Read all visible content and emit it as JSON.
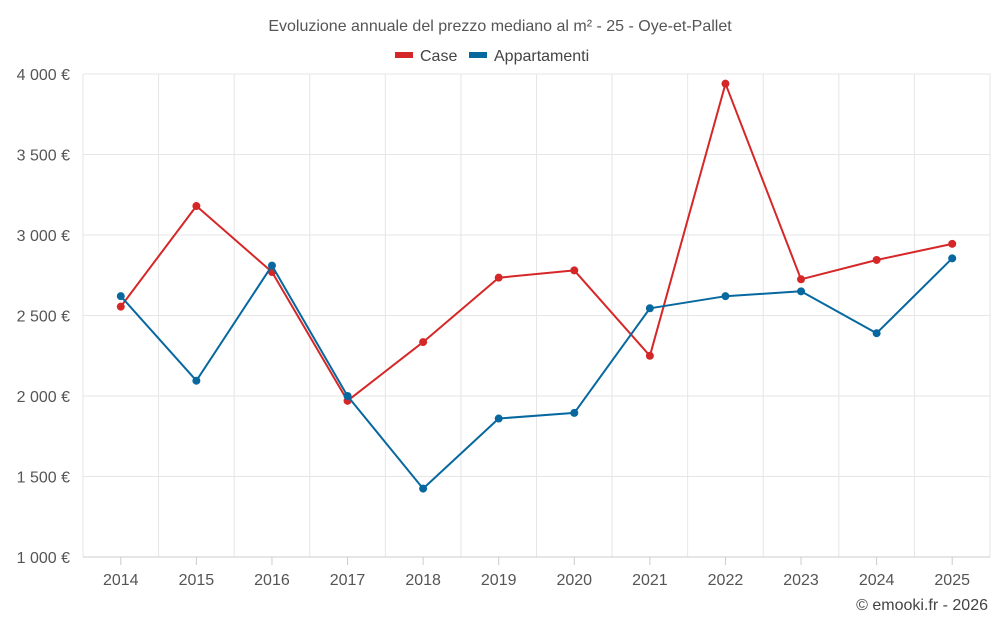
{
  "chart_data": {
    "type": "line",
    "title": "Evoluzione annuale del prezzo mediano al m² - 25 - Oye-et-Pallet",
    "categories": [
      "2014",
      "2015",
      "2016",
      "2017",
      "2018",
      "2019",
      "2020",
      "2021",
      "2022",
      "2023",
      "2024",
      "2025"
    ],
    "y_ticks": [
      "1 000 €",
      "1 500 €",
      "2 000 €",
      "2 500 €",
      "3 000 €",
      "3 500 €",
      "4 000 €"
    ],
    "ylim": [
      1000,
      4000
    ],
    "grid": true,
    "legend_position": "top",
    "series": [
      {
        "name": "Case",
        "color": "#d62728",
        "values": [
          2555,
          3180,
          2770,
          1970,
          2335,
          2735,
          2780,
          2250,
          3940,
          2725,
          2845,
          2945
        ]
      },
      {
        "name": "Appartamenti",
        "color": "#07689f",
        "values": [
          2620,
          2095,
          2810,
          2000,
          1425,
          1860,
          1895,
          2545,
          2620,
          2650,
          2390,
          2855
        ]
      }
    ]
  },
  "credit": "© emooki.fr - 2026"
}
